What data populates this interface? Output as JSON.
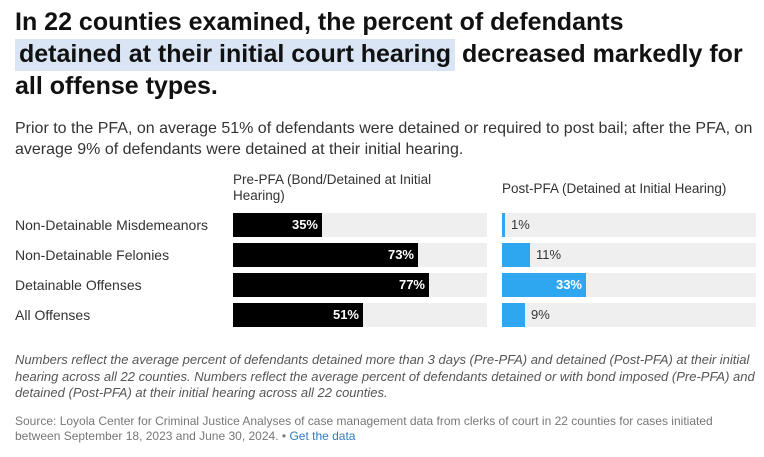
{
  "header": {
    "title_part1": "In 22 counties examined, the percent of defendants",
    "title_highlight": "detained at their initial court hearing",
    "title_part2": "decreased markedly for all offense types.",
    "subtitle": "Prior to the PFA, on average 51% of defendants were detained or required to post bail; after the PFA, on average 9% of defendants were detained at their initial hearing."
  },
  "colors": {
    "pre_bar": "#000000",
    "post_bar": "#2ea7f0",
    "track": "#efefef",
    "highlight": "#d9e5f4"
  },
  "chart_data": {
    "type": "bar",
    "orientation": "horizontal",
    "categories": [
      "Non-Detainable Misdemeanors",
      "Non-Detainable Felonies",
      "Detainable Offenses",
      "All Offenses"
    ],
    "series": [
      {
        "name": "Pre-PFA (Bond/Detained at Initial Hearing)",
        "values": [
          35,
          73,
          77,
          51
        ],
        "labels": [
          "35%",
          "73%",
          "77%",
          "51%"
        ]
      },
      {
        "name": "Post-PFA (Detained at Initial Hearing)",
        "values": [
          1,
          11,
          33,
          9
        ],
        "labels": [
          "1%",
          "11%",
          "33%",
          "9%"
        ]
      }
    ],
    "xlim": [
      0,
      100
    ],
    "unit": "%"
  },
  "footer": {
    "notes": "Numbers reflect the average percent of defendants detained more than 3 days (Pre-PFA) and detained (Post-PFA) at their initial hearing across all 22 counties. Numbers reflect the average percent of defendants detained or with bond imposed (Pre-PFA) and detained (Post-PFA) at their initial hearing across all 22 counties.",
    "source": "Source: Loyola Center for Criminal Justice Analyses of case management data from clerks of court in 22 counties for cases initiated between September 18, 2023 and June 30, 2024.",
    "separator": "•",
    "link_text": "Get the data"
  }
}
